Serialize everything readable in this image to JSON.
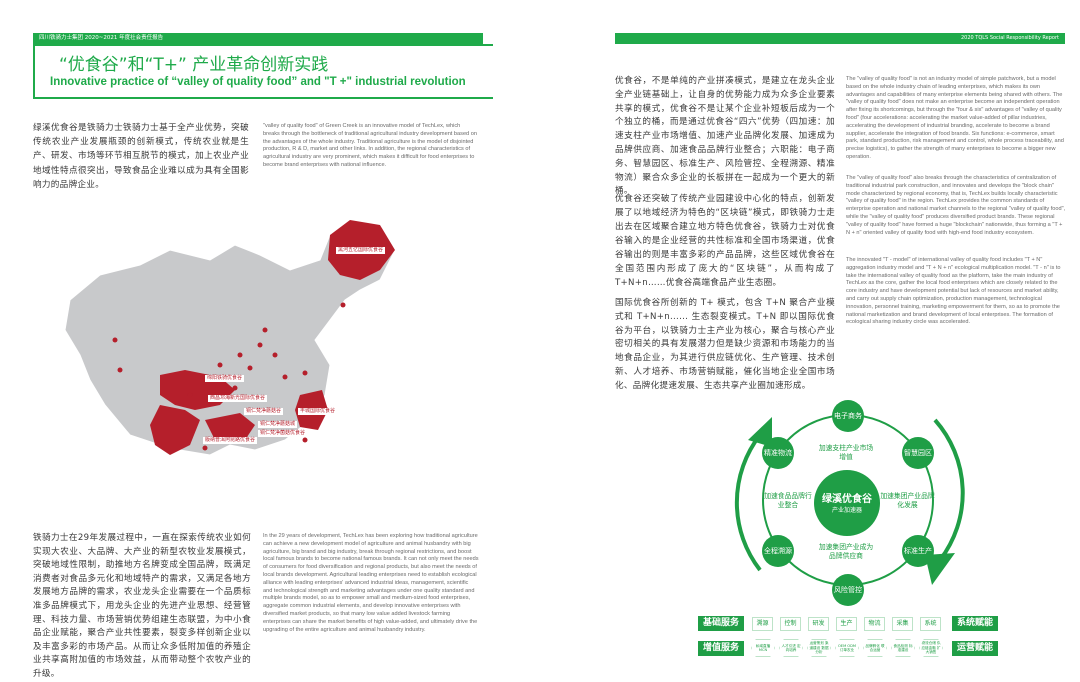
{
  "left_page": {
    "header_band": "四川铁骑力士集团 2020~2021 年度社会责任报告",
    "title_zh": "“优食谷”和“T+” 产业革命创新实践",
    "title_en": "Innovative practice of “valley of quality food” and \"T +\" industrial revolution",
    "intro_zh": "绿溪优食谷是铁骑力士铁骑力士基于全产业优势，突破传统农业产业发展瓶颈的创新模式，传统农业就是生产、研发、市场等环节相互脱节的模式，加上农业产业地域性特点很突出，导致食品企业难以成为具有全国影响力的品牌企业。",
    "intro_en": "\"valley of quality food\" of Green Creek is an innovative model of TechLex, which breaks through the bottleneck of traditional agricultural industry development based on the advantages of the whole industry. Traditional agriculture is the model of disjointed production, R & D, market and other links. In addition, the regional characteristics of agricultural industry are very prominent, which makes it difficult for food enterprises to become brand enterprises with national influence.",
    "map_labels": [
      "黑河五亿国际优食谷",
      "绵阳铁骑优食谷",
      "西昌邛海新光国际优食谷",
      "铜仁梵净蘑菇谷",
      "丰城国际优食谷",
      "铜仁梵净蘑菇城",
      "铜仁梵净菌菇优食谷",
      "版纳普洱阿昆路优食谷"
    ],
    "map_colors": {
      "land": "#c8c9cb",
      "highlight": "#b51f2b",
      "dot": "#b51f2b"
    },
    "body2_zh": "铁骑力士在29年发展过程中，一直在探索传统农业如何实现大农业、大品牌、大产业的新型农牧业发展模式，突破地域性限制，助推地方名牌变成全国品牌，既满足消费者对食品多元化和地域特产的需求，又满足各地方发展地方品牌的需求，农业龙头企业需要在一个品质标准多品牌模式下，用龙头企业的先进产业思想、经营管理、科技力量、市场营销优势组建生态联盟，为中小食品企业赋能，聚合产业共性要素，裂变多样创新企业以及丰富多彩的市场产品。从而让众多低附加值的养殖企业共享高附加值的市场效益，从而带动整个农牧产业的升级。",
    "body2_en": "In the 29 years of development, TechLex has been exploring how traditional agriculture can achieve a new development model of agriculture and animal husbandry with big agriculture, big brand and big industry, break through regional restrictions, and boost local famous brands to become national famous brands. It can not only meet the needs of consumers for food diversification and regional products, but also meet the needs of local brands development. Agricultural leading enterprises need to establish ecological alliance with leading enterprises' advanced industrial ideas, management, scientific and technological strength and marketing advantages under one quality standard and multiple brands model, so as to empower small and medium-sized food enterprises, aggregate common industrial elements, and develop innovative enterprises with diversified market products, so that many low value added livestock farming enterprises can share the market benefits of high value-added, and ultimately drive the upgrading of the entire agriculture and animal husbandry industry."
  },
  "right_page": {
    "header_band": "2020 TQLS Social Responsibility Report",
    "p1_zh": "优食谷，不是单纯的产业拼凑模式，是建立在龙头企业全产业链基础上，让自身的优势能力成为众多企业要素共享的模式，优食谷不是让某个企业补短板后成为一个个独立的桶，而是通过优食谷“四六”优势（四加速：加速支柱产业市场增值、加速产业品牌化发展、加速成为品牌供应商、加速食品品牌行业整合；六职能：电子商务、智慧园区、标准生产、风险管控、全程溯源、精准物流）聚合众多企业的长板拼在一起成为一个更大的新桶。",
    "p2_zh": "优食谷还突破了传统产业园建设中心化的特点，创新发展了以地域经济为特色的“区块链”模式，即铁骑力士走出去在区域聚合建立地方特色优食谷，铁骑力士对优食谷输入的是企业经营的共性标准和全国市场渠道，优食谷输出的则是丰富多彩的产品品牌，这些区域优食谷在全国范围内形成了庞大的“区块链”，从而构成了 T+N+n……优食谷高端食品产业生态圈。",
    "p3_zh": "国际优食谷所创新的 T+ 模式，包含 T+N 聚合产业模式和 T+N+n...... 生态裂变模式。T+N 即以国际优食谷为平台，以铁骑力士主产业为核心，聚合与核心产业密切相关的具有发展潜力但是缺少资源和市场能力的当地食品企业，为其进行供应链优化、生产管理、技术创新、人才培养、市场营销赋能，催化当地企业全国市场化、品牌化提速发展、生态共享产业圈加速形成。",
    "p1_en": "The \"valley of quality food\" is not an industry model of simple patchwork, but a model based on the whole industry chain of leading enterprises, which makes its own advantages and capabilities of many enterprise elements being shared with others. The \"valley of quality food\" does not make an enterprise become an independent operation after fixing its shortcomings, but through the \"four & six\" advantages of \"valley of quality food\" (four accelerations: accelerating the market value-added of pillar industries, accelerating the development of industrial branding, accelerate to become a brand supplier, accelerate the integration of food brands. Six functions: e-commerce, smart park, standard production, risk management and control, whole process traceability, and precise logistics), to gather the strength of many enterprises to become a bigger new operation.",
    "p2_en": "The \"valley of quality food\" also breaks through the characteristics of centralization of traditional industrial park construction, and innovates and develops the \"block chain\" mode characterized by regional economy, that is, TechLex builds locally characteristic \"valley of quality food\" in the region. TechLex provides the common standards of enterprise operation and national market channels to the regional \"valley of quality food\", while the \"valley of quality food\" produces diversified product brands. These regional \"valley of quality food\" have formed a huge \"blockchain\" nationwide, thus forming a \"T + N + n\" oriented valley of quality food with high-end food industry ecosystem.",
    "p3_en": "The innovated \"T - model\" of international valley of quality food includes \"T + N\" aggregation industry model and \"T + N + n\" ecological multiplication model. \"T - n\" is to take the international valley of quality food as the platform, take the main industry of TechLex as the core, gather the local food enterprises which are closely related to the core industry and have development potential but lack of resources and market ability, and carry out supply chain optimization, production management, technological innovation, personnel training, marketing empowerment for them, so as to promote the national marketization and brand development of local enterprises. The formation of ecological sharing industry circle was accelerated.",
    "diagram": {
      "center_title": "绿溪优食谷",
      "center_sub": "产业加速器",
      "nodes": [
        "电子商务",
        "智慧园区",
        "标准生产",
        "风险管控",
        "全程溯源",
        "精准物流"
      ],
      "ring_texts": [
        "加速支柱产业市场增值",
        "加速集团产业品牌化发展",
        "加速集团产业成为品牌供应商",
        "加速食品品牌行业整合"
      ],
      "basic_label": "基础服务",
      "basic_items": [
        "溯源",
        "控制",
        "研发",
        "生产",
        "物流",
        "采集",
        "系统"
      ],
      "basic_right": "系统赋能",
      "value_label": "增值服务",
      "value_items": [
        "私域直播 MCN",
        "人才引进 定向培养",
        "运营策划 渠道建设 数据分析",
        "OEM ODM 订单农业",
        "品牌孵化 联合运营",
        "食品检测 标准建设",
        "物流仓储 供应链金融 扩大销售"
      ],
      "value_right": "运营赋能",
      "accent": "#1f9e46"
    }
  }
}
